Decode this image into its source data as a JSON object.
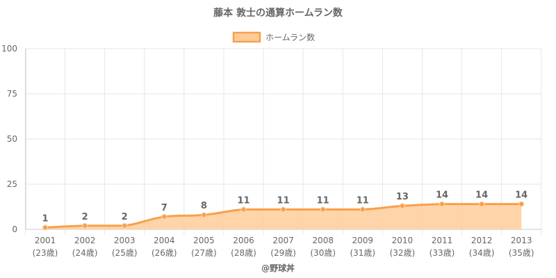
{
  "chart_data": {
    "type": "area",
    "title": "藤本 敦士の通算ホームラン数",
    "legend": {
      "position": "top",
      "entries": [
        "ホームラン数"
      ]
    },
    "categories": [
      "2001",
      "2002",
      "2003",
      "2004",
      "2005",
      "2006",
      "2007",
      "2008",
      "2009",
      "2010",
      "2011",
      "2012",
      "2013"
    ],
    "category_sublabels": [
      "(23歳)",
      "(24歳)",
      "(25歳)",
      "(26歳)",
      "(27歳)",
      "(28歳)",
      "(29歳)",
      "(30歳)",
      "(31歳)",
      "(32歳)",
      "(33歳)",
      "(34歳)",
      "(35歳)"
    ],
    "series": [
      {
        "name": "ホームラン数",
        "values": [
          1,
          2,
          2,
          7,
          8,
          11,
          11,
          11,
          11,
          13,
          14,
          14,
          14
        ]
      }
    ],
    "ylim": [
      0,
      100
    ],
    "yticks": [
      0,
      25,
      50,
      75,
      100
    ],
    "grid": true,
    "data_labels": true,
    "colors": {
      "line": "#f7a04b",
      "fill": "#ffcc99",
      "point": "#f7a04b"
    }
  },
  "footer": {
    "credit": "@野球丼"
  }
}
